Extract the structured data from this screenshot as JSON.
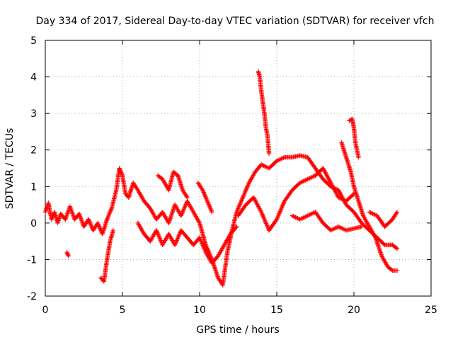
{
  "chart_data": {
    "type": "scatter",
    "title": "Day 334 of 2017, Sidereal Day-to-day VTEC variation (SDTVAR) for receiver vfch",
    "xlabel": "GPS time / hours",
    "ylabel": "SDTVAR / TECUs",
    "xlim": [
      0,
      25
    ],
    "ylim": [
      -2,
      5
    ],
    "xticks": [
      0,
      5,
      10,
      15,
      20,
      25
    ],
    "yticks": [
      -2,
      -1,
      0,
      1,
      2,
      3,
      4,
      5
    ],
    "grid": true,
    "marker": "+",
    "color": "#ff0000",
    "series": [
      {
        "name": "SDTVAR",
        "segments": [
          [
            [
              0,
              0.3
            ],
            [
              0.2,
              0.55
            ],
            [
              0.4,
              0.1
            ],
            [
              0.6,
              0.3
            ],
            [
              0.8,
              0.0
            ],
            [
              1.0,
              0.25
            ],
            [
              1.3,
              0.1
            ],
            [
              1.6,
              0.45
            ],
            [
              1.9,
              0.1
            ],
            [
              2.2,
              0.25
            ],
            [
              2.5,
              -0.1
            ],
            [
              2.8,
              0.1
            ],
            [
              3.1,
              -0.2
            ],
            [
              3.4,
              0.0
            ],
            [
              3.7,
              -0.3
            ],
            [
              4.0,
              0.1
            ],
            [
              4.3,
              0.4
            ],
            [
              4.6,
              0.9
            ],
            [
              4.8,
              1.5
            ],
            [
              5.0,
              1.3
            ],
            [
              5.2,
              0.8
            ],
            [
              5.4,
              0.7
            ],
            [
              5.7,
              1.1
            ],
            [
              6.0,
              0.9
            ],
            [
              6.4,
              0.6
            ],
            [
              6.8,
              0.4
            ],
            [
              7.2,
              0.1
            ],
            [
              7.6,
              0.3
            ],
            [
              8.0,
              0.0
            ],
            [
              8.4,
              0.5
            ],
            [
              8.8,
              0.2
            ],
            [
              9.2,
              0.6
            ],
            [
              9.6,
              0.3
            ],
            [
              10.0,
              0.0
            ],
            [
              10.4,
              -0.6
            ],
            [
              10.8,
              -1.0
            ],
            [
              11.2,
              -1.5
            ],
            [
              11.5,
              -1.7
            ],
            [
              11.8,
              -0.8
            ],
            [
              12.1,
              -0.2
            ],
            [
              12.4,
              0.3
            ],
            [
              12.8,
              0.7
            ],
            [
              13.2,
              1.1
            ],
            [
              13.6,
              1.4
            ],
            [
              14.0,
              1.6
            ],
            [
              14.5,
              1.5
            ],
            [
              15.0,
              1.7
            ],
            [
              15.5,
              1.8
            ],
            [
              16.0,
              1.8
            ],
            [
              16.5,
              1.85
            ],
            [
              17.0,
              1.8
            ],
            [
              17.5,
              1.5
            ],
            [
              18.0,
              1.2
            ],
            [
              18.5,
              1.0
            ],
            [
              19.0,
              0.9
            ],
            [
              19.5,
              0.5
            ],
            [
              20.0,
              0.3
            ],
            [
              20.5,
              0.0
            ],
            [
              21.0,
              -0.2
            ],
            [
              21.5,
              -0.4
            ],
            [
              22.0,
              -0.6
            ],
            [
              22.5,
              -0.6
            ],
            [
              22.8,
              -0.7
            ]
          ],
          [
            [
              1.4,
              -0.8
            ],
            [
              1.5,
              -0.9
            ]
          ],
          [
            [
              3.6,
              -1.5
            ],
            [
              3.8,
              -1.6
            ],
            [
              4.0,
              -1.0
            ],
            [
              4.2,
              -0.5
            ],
            [
              4.4,
              -0.2
            ]
          ],
          [
            [
              7.3,
              1.3
            ],
            [
              7.6,
              1.2
            ],
            [
              8.0,
              0.9
            ],
            [
              8.3,
              1.4
            ],
            [
              8.6,
              1.3
            ],
            [
              8.9,
              0.9
            ],
            [
              9.2,
              0.7
            ]
          ],
          [
            [
              6.0,
              0.0
            ],
            [
              6.4,
              -0.3
            ],
            [
              6.8,
              -0.5
            ],
            [
              7.2,
              -0.2
            ],
            [
              7.6,
              -0.6
            ],
            [
              8.0,
              -0.3
            ],
            [
              8.4,
              -0.6
            ],
            [
              8.8,
              -0.2
            ],
            [
              9.2,
              -0.4
            ],
            [
              9.6,
              -0.6
            ],
            [
              10.0,
              -0.4
            ],
            [
              10.4,
              -0.8
            ],
            [
              10.8,
              -1.1
            ],
            [
              11.2,
              -0.9
            ],
            [
              11.6,
              -0.6
            ],
            [
              12.0,
              -0.3
            ],
            [
              12.4,
              -0.1
            ]
          ],
          [
            [
              9.9,
              1.1
            ],
            [
              10.2,
              0.9
            ],
            [
              10.5,
              0.6
            ],
            [
              10.8,
              0.3
            ]
          ],
          [
            [
              13.8,
              4.15
            ],
            [
              13.9,
              4.0
            ],
            [
              14.0,
              3.6
            ],
            [
              14.1,
              3.3
            ],
            [
              14.2,
              3.0
            ],
            [
              14.3,
              2.6
            ],
            [
              14.4,
              2.4
            ],
            [
              14.5,
              1.9
            ]
          ],
          [
            [
              12.5,
              0.2
            ],
            [
              13.0,
              0.5
            ],
            [
              13.5,
              0.7
            ],
            [
              14.0,
              0.3
            ],
            [
              14.5,
              -0.2
            ],
            [
              15.0,
              0.1
            ],
            [
              15.5,
              0.6
            ],
            [
              16.0,
              0.9
            ],
            [
              16.5,
              1.1
            ],
            [
              17.0,
              1.2
            ],
            [
              17.5,
              1.3
            ],
            [
              18.0,
              1.5
            ],
            [
              18.5,
              1.1
            ],
            [
              19.0,
              0.7
            ],
            [
              19.5,
              0.6
            ],
            [
              20.0,
              0.8
            ]
          ],
          [
            [
              16.0,
              0.2
            ],
            [
              16.5,
              0.1
            ],
            [
              17.0,
              0.2
            ],
            [
              17.5,
              0.3
            ],
            [
              18.0,
              0.0
            ],
            [
              18.5,
              -0.2
            ],
            [
              19.0,
              -0.1
            ],
            [
              19.5,
              -0.2
            ],
            [
              20.0,
              -0.15
            ],
            [
              20.5,
              -0.1
            ]
          ],
          [
            [
              19.2,
              2.2
            ],
            [
              19.5,
              1.8
            ],
            [
              19.8,
              1.4
            ],
            [
              20.0,
              1.0
            ],
            [
              20.3,
              0.6
            ],
            [
              20.6,
              0.2
            ],
            [
              21.0,
              -0.1
            ],
            [
              21.4,
              -0.4
            ],
            [
              21.8,
              -0.9
            ],
            [
              22.2,
              -1.2
            ],
            [
              22.5,
              -1.3
            ],
            [
              22.8,
              -1.3
            ]
          ],
          [
            [
              19.7,
              2.8
            ],
            [
              19.9,
              2.85
            ],
            [
              20.0,
              2.6
            ],
            [
              20.1,
              2.2
            ],
            [
              20.3,
              1.8
            ]
          ],
          [
            [
              21.0,
              0.3
            ],
            [
              21.5,
              0.2
            ],
            [
              22.0,
              -0.1
            ],
            [
              22.5,
              0.1
            ],
            [
              22.8,
              0.3
            ]
          ]
        ]
      }
    ]
  }
}
